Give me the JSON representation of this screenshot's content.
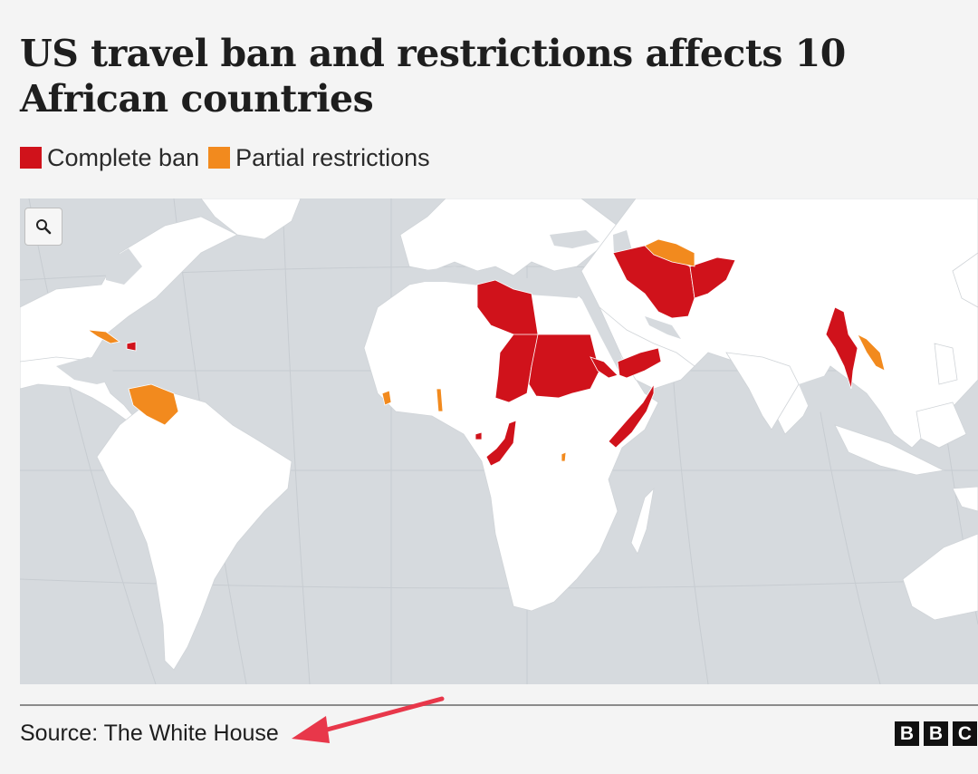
{
  "title": "US travel ban and restrictions affects 10 African countries",
  "legend": {
    "complete": {
      "label": "Complete ban",
      "color": "#d0121b"
    },
    "partial": {
      "label": "Partial restrictions",
      "color": "#f28a1e"
    }
  },
  "map": {
    "ocean_color": "#d6dade",
    "land_color": "#ffffff",
    "zoom_icon": "search-icon"
  },
  "countries": {
    "complete_ban": [
      "Libya",
      "Chad",
      "Sudan",
      "Eritrea",
      "Yemen",
      "Somalia",
      "Republic of the Congo",
      "Equatorial Guinea",
      "Iran",
      "Afghanistan",
      "Myanmar",
      "Haiti"
    ],
    "partial_restrictions": [
      "Cuba",
      "Venezuela",
      "Sierra Leone",
      "Togo",
      "Burundi",
      "Turkmenistan",
      "Laos"
    ]
  },
  "footer": {
    "source": "Source: The White House",
    "brand": [
      "B",
      "B",
      "C"
    ],
    "annotation_arrow_color": "#e8374a"
  }
}
